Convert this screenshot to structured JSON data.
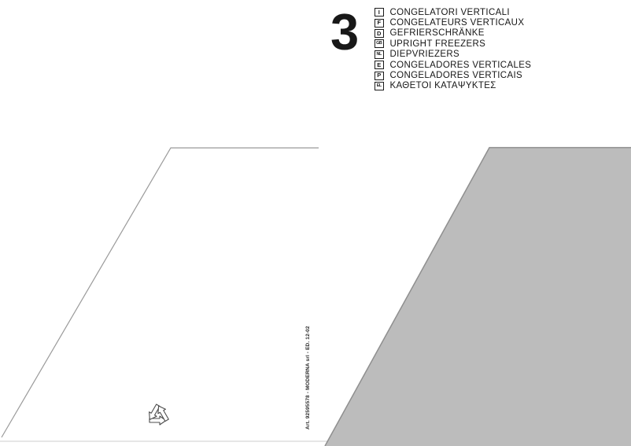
{
  "header": {
    "section_number": "3",
    "languages": [
      {
        "code": "I",
        "label": "CONGELATORI VERTICALI"
      },
      {
        "code": "F",
        "label": "CONGELATEURS VERTICAUX"
      },
      {
        "code": "D",
        "label": "GEFRIERSCHRÄNKE"
      },
      {
        "code": "GB",
        "label": "UPRIGHT FREEZERS"
      },
      {
        "code": "NL",
        "label": "DIEPVRIEZERS"
      },
      {
        "code": "E",
        "label": "CONGELADORES VERTICALES"
      },
      {
        "code": "P",
        "label": "CONGELADORES VERTICAIS"
      },
      {
        "code": "EL",
        "label": "ΚΑΘΕΤΟΙ ΚΑΤΑΨΥΚΤΕΣ"
      }
    ]
  },
  "footer": {
    "edition_note": "Art. 92595578 - MODERNA srl - ED. 12-02"
  },
  "icons": {
    "recycle": "recycling-symbol"
  },
  "colors": {
    "panel_gray": "#bcbcbc",
    "panel_edge_gray": "#8f8f8f",
    "fold_line_gray": "#9a9a9a",
    "page_edge_line": "#dedede",
    "recycle_stroke": "#4c4c4c"
  }
}
